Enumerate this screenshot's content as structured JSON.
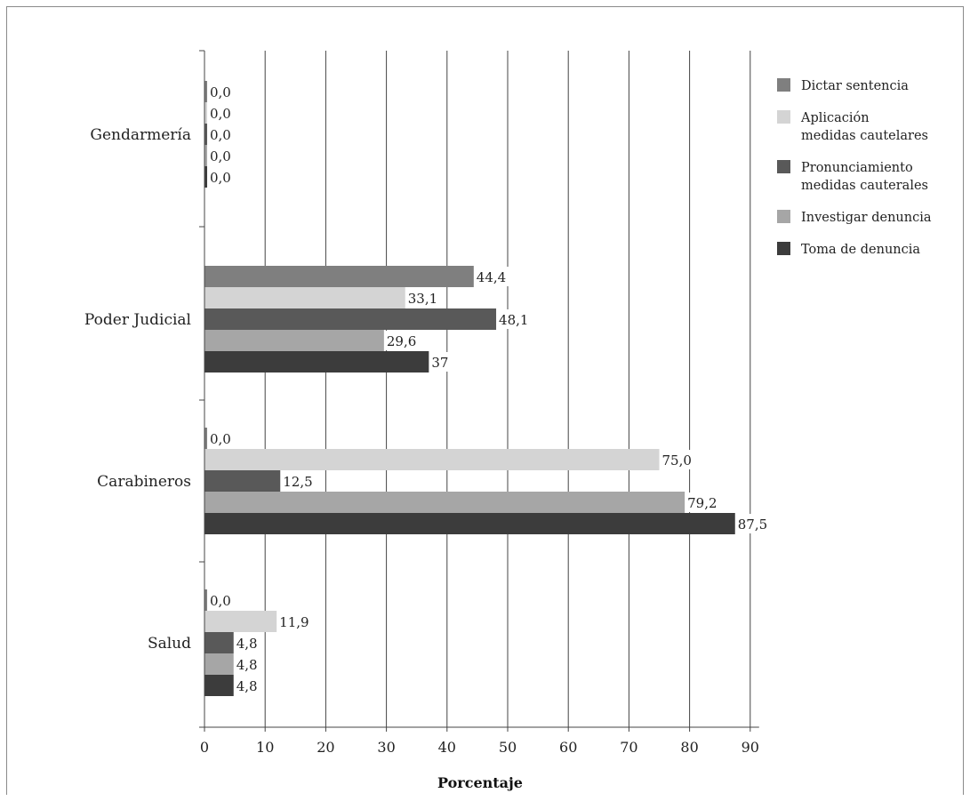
{
  "chart_data": {
    "type": "bar",
    "orientation": "horizontal",
    "title": "",
    "xlabel": "Porcentaje",
    "ylabel": "",
    "xlim": [
      0,
      90
    ],
    "xticks": [
      "0",
      "10",
      "20",
      "30",
      "40",
      "50",
      "60",
      "70",
      "80",
      "90"
    ],
    "grid": "vertical",
    "legend_position": "right",
    "categories": [
      "Gendarmería",
      "Poder Judicial",
      "Carabineros",
      "Salud"
    ],
    "series": [
      {
        "name": "Dictar sentencia",
        "name_lines": [
          "Dictar sentencia"
        ],
        "color": "#7f7f7f",
        "values": [
          0.0,
          44.4,
          0.0,
          0.0
        ],
        "labels": [
          "0,0",
          "44,4",
          "0,0",
          "0,0"
        ]
      },
      {
        "name": "Aplicación medidas cautelares",
        "name_lines": [
          "Aplicación",
          "medidas cautelares"
        ],
        "color": "#d4d4d4",
        "values": [
          0.0,
          33.1,
          75.0,
          11.9
        ],
        "labels": [
          "0,0",
          "33,1",
          "75,0",
          "11,9"
        ]
      },
      {
        "name": "Pronunciamiento medidas cauterales",
        "name_lines": [
          "Pronunciamiento",
          "medidas cauterales"
        ],
        "color": "#595959",
        "values": [
          0.0,
          48.1,
          12.5,
          4.8
        ],
        "labels": [
          "0,0",
          "48,1",
          "12,5",
          "4,8"
        ]
      },
      {
        "name": "Investigar denuncia",
        "name_lines": [
          "Investigar denuncia"
        ],
        "color": "#a6a6a6",
        "values": [
          0.0,
          29.6,
          79.2,
          4.8
        ],
        "labels": [
          "0,0",
          "29,6",
          "79,2",
          "4,8"
        ]
      },
      {
        "name": "Toma de denuncia",
        "name_lines": [
          "Toma de denuncia"
        ],
        "color": "#3c3c3c",
        "values": [
          0.0,
          37,
          87.5,
          4.8
        ],
        "labels": [
          "0,0",
          "37",
          "87,5",
          "4,8"
        ]
      }
    ]
  }
}
